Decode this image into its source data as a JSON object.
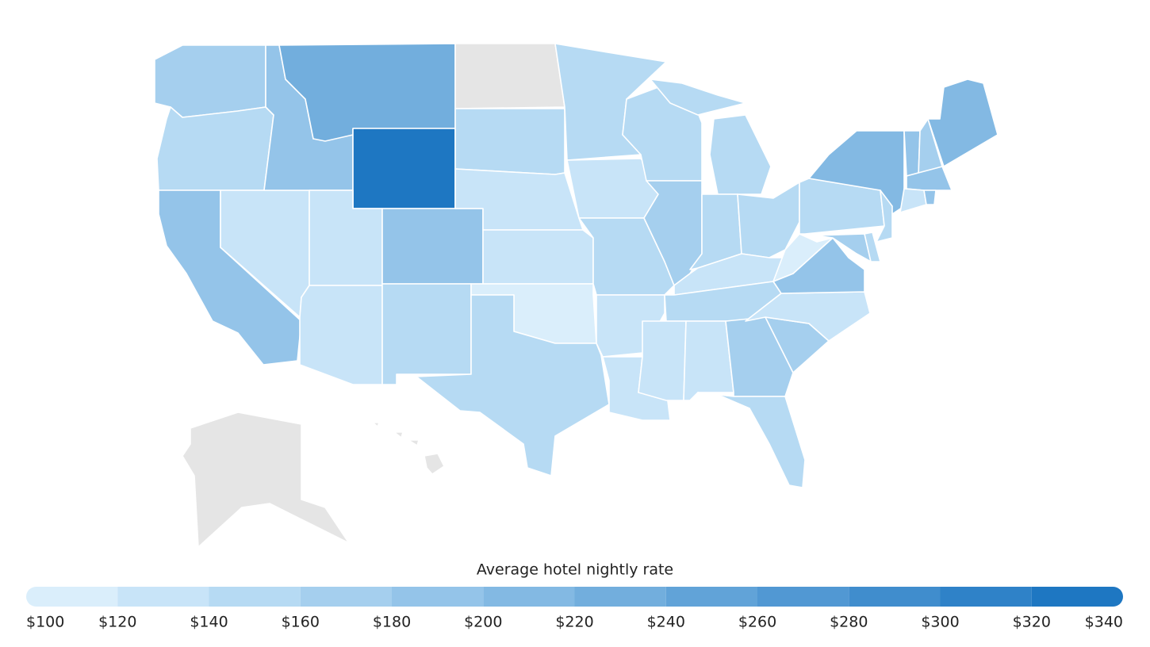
{
  "chart_data": {
    "type": "choropleth",
    "legend_title": "Average hotel nightly rate",
    "values": [
      170,
      150,
      190,
      130,
      190,
      230,
      330,
      130,
      130,
      190,
      150,
      null,
      150,
      130,
      130,
      110,
      150,
      150,
      130,
      150,
      130,
      130,
      150,
      170,
      150,
      150,
      150,
      130,
      150,
      130,
      130,
      170,
      150,
      170,
      130,
      190,
      110,
      150,
      210,
      150,
      170,
      150,
      190,
      170,
      210,
      190,
      130,
      190,
      null,
      null
    ],
    "ticks": [
      {
        "value": 100,
        "label": "$100"
      },
      {
        "value": 120,
        "label": "$120"
      },
      {
        "value": 140,
        "label": "$140"
      },
      {
        "value": 160,
        "label": "$160"
      },
      {
        "value": 180,
        "label": "$180"
      },
      {
        "value": 200,
        "label": "$200"
      },
      {
        "value": 220,
        "label": "$220"
      },
      {
        "value": 240,
        "label": "$240"
      },
      {
        "value": 260,
        "label": "$260"
      },
      {
        "value": 280,
        "label": "$280"
      },
      {
        "value": 300,
        "label": "$300"
      },
      {
        "value": 320,
        "label": "$320"
      },
      {
        "value": 340,
        "label": "$340"
      }
    ],
    "colors": [
      "#daeefb",
      "#c8e4f8",
      "#b6daf3",
      "#a5cfee",
      "#94c4e9",
      "#83b9e3",
      "#72aedd",
      "#61a3d8",
      "#5198d3",
      "#408dcd",
      "#2f82c8",
      "#1e77c2"
    ],
    "missing_color": "#e5e5e5"
  }
}
